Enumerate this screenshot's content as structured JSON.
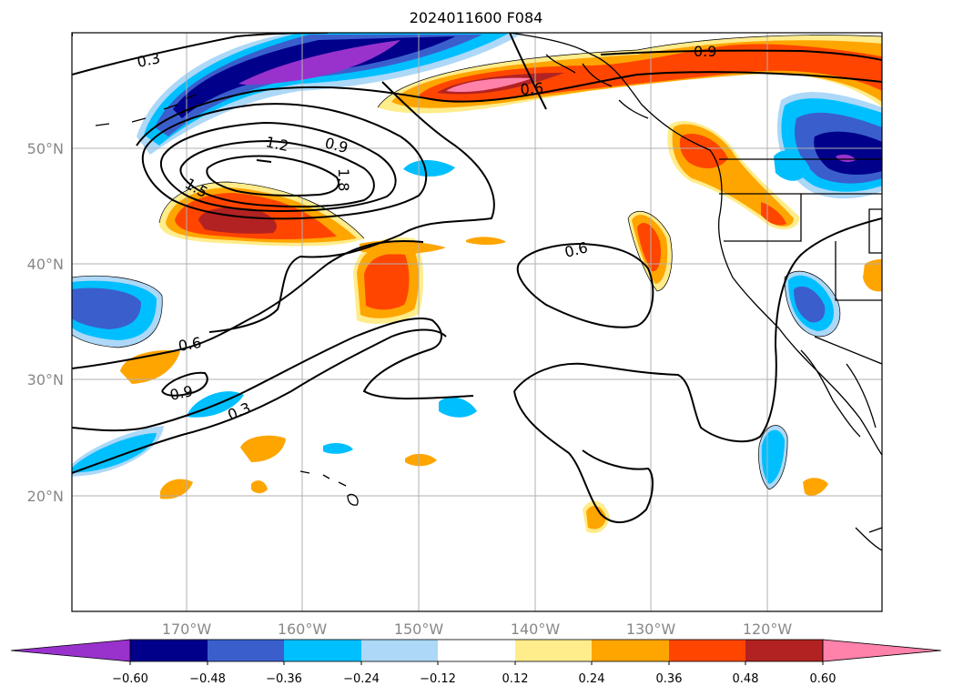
{
  "title": "2024011600 F084",
  "map": {
    "lat_labels": [
      "50°N",
      "40°N",
      "30°N",
      "20°N"
    ],
    "lon_labels": [
      "170°W",
      "160°W",
      "150°W",
      "140°W",
      "130°W",
      "120°W"
    ],
    "contour_labels": [
      "0.3",
      "0.3",
      "0.6",
      "0.6",
      "0.6",
      "0.9",
      "0.9",
      "0.9",
      "1.2",
      "1.5",
      "1.8"
    ]
  },
  "colorbar": {
    "tick_labels": [
      "−0.60",
      "−0.48",
      "−0.36",
      "−0.24",
      "−0.12",
      "0.12",
      "0.24",
      "0.36",
      "0.48",
      "0.60"
    ],
    "colors": [
      "#9932cc",
      "#00008b",
      "#3a5fcd",
      "#00bfff",
      "#add8f7",
      "#ffffff",
      "#ffec8b",
      "#ffa500",
      "#ff4500",
      "#b22222",
      "#ff82ab"
    ]
  }
}
